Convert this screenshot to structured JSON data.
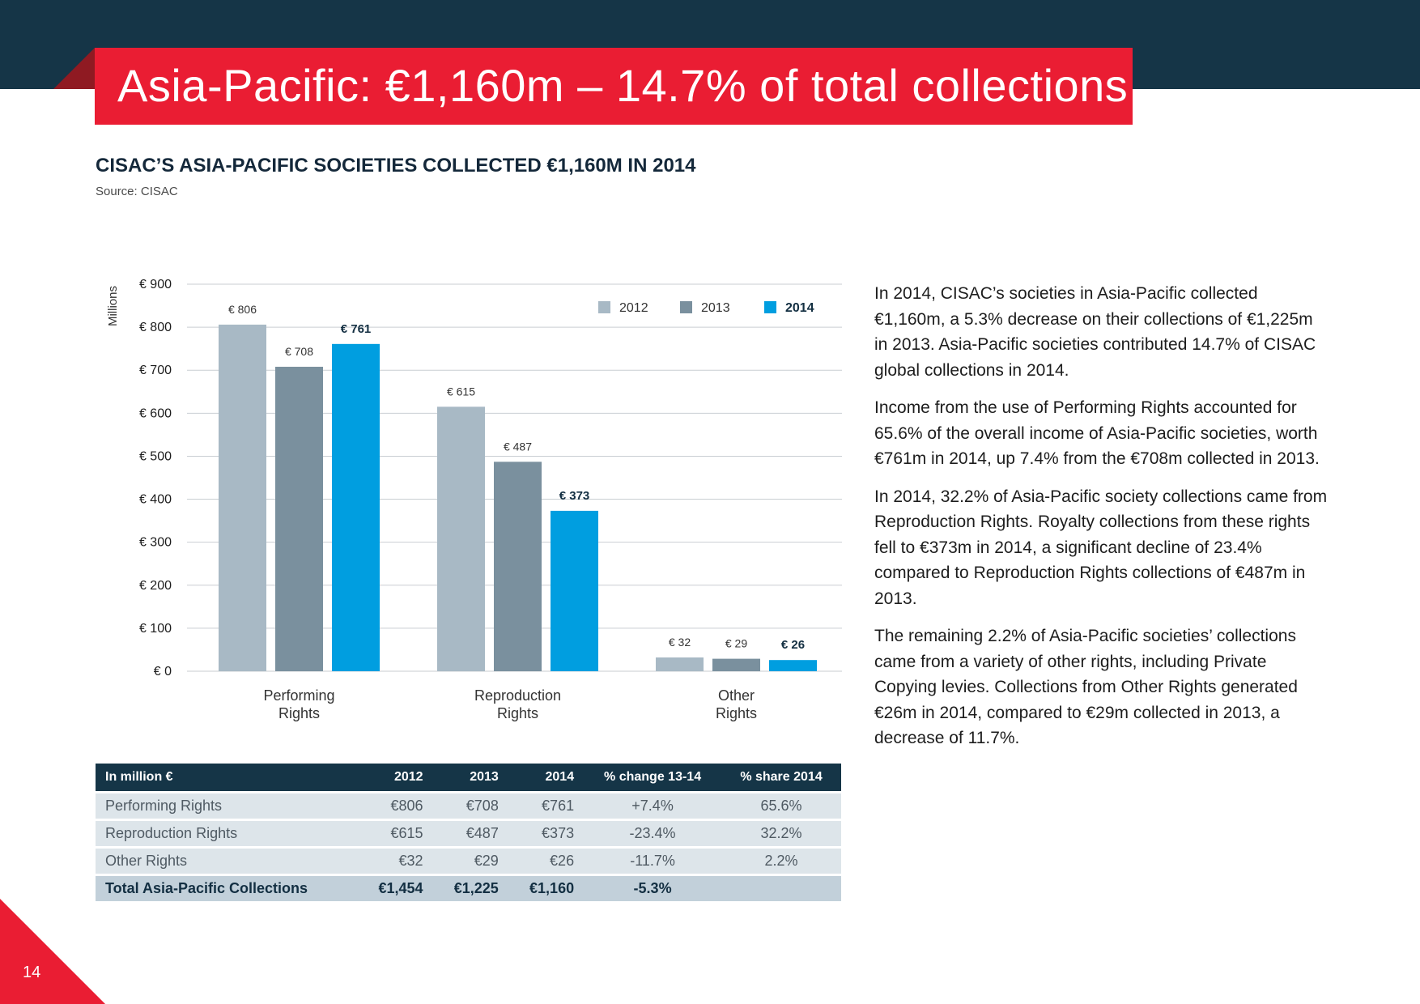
{
  "header": {
    "title": "Asia-Pacific: €1,160m – 14.7% of total collections"
  },
  "chart_heading": "CISAC’S ASIA-PACIFIC SOCIETIES COLLECTED €1,160M IN 2014",
  "chart_source": "Source: CISAC",
  "chart_data": {
    "type": "bar",
    "title": "CISAC’S ASIA-PACIFIC SOCIETIES COLLECTED €1,160M IN 2014",
    "ylabel": "Millions",
    "xlabel": "",
    "ylim": [
      0,
      900
    ],
    "yticks": [
      0,
      100,
      200,
      300,
      400,
      500,
      600,
      700,
      800,
      900
    ],
    "ytick_labels": [
      "€ 0",
      "€ 100",
      "€ 200",
      "€ 300",
      "€ 400",
      "€ 500",
      "€ 600",
      "€ 700",
      "€ 800",
      "€ 900"
    ],
    "categories": [
      [
        "Performing",
        "Rights"
      ],
      [
        "Reproduction",
        "Rights"
      ],
      [
        "Other",
        "Rights"
      ]
    ],
    "series": [
      {
        "name": "2012",
        "color": "#a8b9c5",
        "values": [
          806,
          615,
          32
        ],
        "labels": [
          "€ 806",
          "€ 615",
          "€ 32"
        ],
        "bold": false
      },
      {
        "name": "2013",
        "color": "#7a909e",
        "values": [
          708,
          487,
          29
        ],
        "labels": [
          "€ 708",
          "€ 487",
          "€ 29"
        ],
        "bold": false
      },
      {
        "name": "2014",
        "color": "#009ee0",
        "values": [
          761,
          373,
          26
        ],
        "labels": [
          "€ 761",
          "€ 373",
          "€ 26"
        ],
        "bold": true
      }
    ],
    "legend_position": "top-right",
    "grid": true
  },
  "body_text": [
    "In 2014, CISAC’s societies in Asia-Pacific collected €1,160m, a 5.3% decrease on their collections of €1,225m in 2013. Asia-Pacific societies contributed 14.7% of CISAC global collections in 2014.",
    "Income from the use of Performing Rights accounted for 65.6% of the overall income of Asia-Pacific societies, worth €761m in 2014, up 7.4% from the €708m collected in 2013.",
    "In 2014, 32.2% of Asia-Pacific society collections came from Reproduction Rights. Royalty collections from these rights fell to €373m in 2014, a significant decline of 23.4% compared to Reproduction Rights collections of €487m in 2013.",
    "The remaining 2.2% of Asia-Pacific societies’ collections came from a variety of other rights, including Private Copying levies. Collections from Other Rights generated €26m in 2014, compared to €29m collected in 2013, a decrease of 11.7%."
  ],
  "table": {
    "headers": [
      "In million €",
      "2012",
      "2013",
      "2014",
      "% change 13-14",
      "% share 2014"
    ],
    "rows": [
      [
        "Performing Rights",
        "€806",
        "€708",
        "€761",
        "+7.4%",
        "65.6%"
      ],
      [
        "Reproduction Rights",
        "€615",
        "€487",
        "€373",
        "-23.4%",
        "32.2%"
      ],
      [
        "Other Rights",
        "€32",
        "€29",
        "€26",
        "-11.7%",
        "2.2%"
      ]
    ],
    "total": [
      "Total Asia-Pacific Collections",
      "€1,454",
      "€1,225",
      "€1,160",
      "-5.3%",
      ""
    ]
  },
  "footer": {
    "page_number": "14"
  }
}
